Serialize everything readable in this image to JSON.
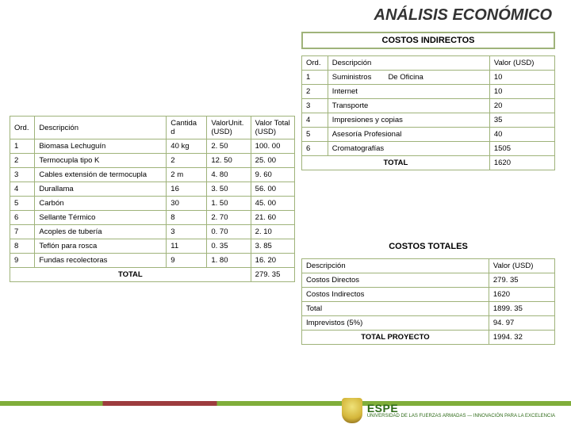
{
  "title": "ANÁLISIS ECONÓMICO",
  "indirect_header": "COSTOS INDIRECTOS",
  "left": {
    "head": {
      "ord": "Ord.",
      "desc": "Descripción",
      "cant": "Cantida d",
      "unit": "ValorUnit. (USD)",
      "tot": "Valor Total (USD)"
    },
    "rows": [
      {
        "ord": "1",
        "desc": "Biomasa Lechuguín",
        "cant": "40 kg",
        "unit": "2. 50",
        "tot": "100. 00"
      },
      {
        "ord": "2",
        "desc": "Termocupla tipo K",
        "cant": "2",
        "unit": "12. 50",
        "tot": "25. 00"
      },
      {
        "ord": "3",
        "desc": "Cables extensión de termocupla",
        "cant": "2 m",
        "unit": "4. 80",
        "tot": "9. 60"
      },
      {
        "ord": "4",
        "desc": "Durallama",
        "cant": "16",
        "unit": "3. 50",
        "tot": "56. 00"
      },
      {
        "ord": "5",
        "desc": "Carbón",
        "cant": "30",
        "unit": "1. 50",
        "tot": "45. 00"
      },
      {
        "ord": "6",
        "desc": "Sellante Térmico",
        "cant": "8",
        "unit": "2. 70",
        "tot": "21. 60"
      },
      {
        "ord": "7",
        "desc": "Acoples de tubería",
        "cant": "3",
        "unit": "0. 70",
        "tot": "2. 10"
      },
      {
        "ord": "8",
        "desc": "Teflón para rosca",
        "cant": "11",
        "unit": "0. 35",
        "tot": "3. 85"
      },
      {
        "ord": "9",
        "desc": "Fundas recolectoras",
        "cant": "9",
        "unit": "1. 80",
        "tot": "16. 20"
      }
    ],
    "total_label": "TOTAL",
    "total_value": "279. 35"
  },
  "indirect": {
    "head": {
      "ord": "Ord.",
      "desc": "Descripción",
      "val": "Valor (USD)"
    },
    "rows": [
      {
        "ord": "1",
        "desc": "Suministros        De Oficina",
        "val": "10"
      },
      {
        "ord": "2",
        "desc": "Internet",
        "val": "10"
      },
      {
        "ord": "3",
        "desc": "Transporte",
        "val": "20"
      },
      {
        "ord": "4",
        "desc": "Impresiones y copias",
        "val": "35"
      },
      {
        "ord": "5",
        "desc": "Asesoría Profesional",
        "val": "40"
      },
      {
        "ord": "6",
        "desc": "Cromatografías",
        "val": "1505"
      }
    ],
    "total_label": "TOTAL",
    "total_value": "1620"
  },
  "totals": {
    "title": "COSTOS TOTALES",
    "head": {
      "desc": "Descripción",
      "val": "Valor (USD)"
    },
    "rows": [
      {
        "desc": "Costos Directos",
        "val": "279. 35"
      },
      {
        "desc": "Costos Indirectos",
        "val": "1620"
      },
      {
        "desc": "Total",
        "val": "1899. 35"
      },
      {
        "desc": "Imprevistos (5%)",
        "val": "94. 97"
      }
    ],
    "final_label": "TOTAL PROYECTO",
    "final_value": "1994. 32"
  },
  "logo": {
    "l1": "ESPE",
    "l2": "UNIVERSIDAD DE LAS FUERZAS ARMADAS — INNOVACIÓN PARA LA EXCELENCIA"
  }
}
